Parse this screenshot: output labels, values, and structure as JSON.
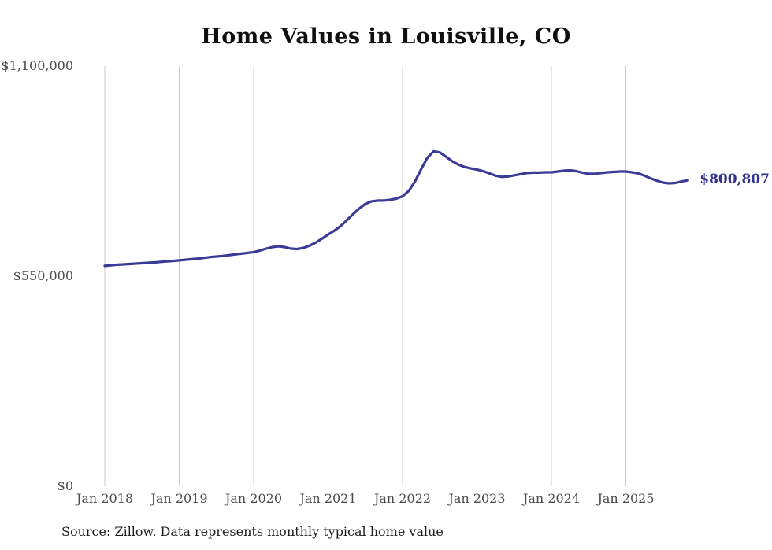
{
  "title": "Home Values in Louisville, CO",
  "footer": {
    "source": "Source: Zillow. Data represents monthly typical home value"
  },
  "annotation": {
    "end_value_label": "$800,807"
  },
  "colors": {
    "line": "#3b3b97",
    "annotation": "#33338f",
    "grid": "#cccccc",
    "axis_text": "#4a4a4a",
    "title": "#101010",
    "source": "#1c1c1c",
    "background": "#ffffff"
  },
  "chart_data": {
    "type": "line",
    "title": "Home Values in Louisville, CO",
    "xlabel": "",
    "ylabel": "",
    "frequency": "monthly",
    "x_range": [
      "Jan 2018",
      "Nov 2025"
    ],
    "x_tick_labels": [
      "Jan 2018",
      "Jan 2019",
      "Jan 2020",
      "Jan 2021",
      "Jan 2022",
      "Jan 2023",
      "Jan 2024",
      "Jan 2025"
    ],
    "y_ticks": [
      {
        "label": "$1,100,000",
        "value": 1100000
      },
      {
        "label": "$550,000",
        "value": 550000
      },
      {
        "label": "$0",
        "value": 0
      }
    ],
    "ylim": [
      0,
      1100000
    ],
    "grid": "vertical-only",
    "legend": "none",
    "end_annotation": {
      "text": "$800,807",
      "value": 800807,
      "x": "Nov 2025"
    },
    "series": [
      {
        "name": "Typical home value (USD)",
        "start_month": "2018-01",
        "values": [
          577000,
          578500,
          580000,
          581000,
          582000,
          583000,
          584000,
          585000,
          586000,
          587500,
          589000,
          590000,
          591500,
          593000,
          594500,
          596000,
          598000,
          600000,
          601500,
          603000,
          605000,
          607000,
          609000,
          611000,
          613000,
          617000,
          622000,
          626000,
          628000,
          626000,
          622000,
          621000,
          624000,
          630000,
          638000,
          648000,
          659000,
          669000,
          681000,
          696000,
          712000,
          727000,
          739000,
          746000,
          748000,
          748000,
          750000,
          753000,
          759000,
          773000,
          798000,
          830000,
          860000,
          877000,
          874000,
          863000,
          851000,
          842000,
          836000,
          832000,
          829000,
          825000,
          819000,
          813000,
          810000,
          811000,
          814000,
          817000,
          820000,
          821000,
          821000,
          822000,
          822000,
          824000,
          826000,
          827000,
          825000,
          821000,
          818000,
          818000,
          820000,
          822000,
          823000,
          824000,
          824000,
          822000,
          819000,
          813000,
          806000,
          800000,
          795000,
          793000,
          794000,
          798000,
          800807
        ]
      }
    ]
  }
}
